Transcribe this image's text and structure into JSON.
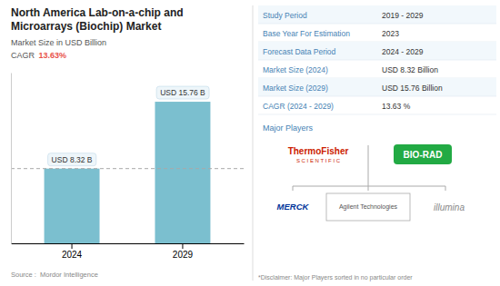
{
  "chart_data": {
    "type": "bar",
    "title": "North America Lab-on-a-chip and\nMicroarrays (Biochip) Market",
    "subtitle": "Market Size in USD Billion",
    "categories": [
      "2024",
      "2029"
    ],
    "values": [
      8.32,
      15.76
    ],
    "value_labels": [
      "USD 8.32 B",
      "USD 15.76 B"
    ],
    "data_labels": true,
    "color": "#7bbfcf",
    "ylim": [
      0,
      19
    ],
    "tick_labels": "x",
    "grid": false,
    "hline": 8.32,
    "annotations": [
      {
        "text": "CAGR "
      },
      {
        "text": "13.63%",
        "color": "#e8524a"
      },
      {
        "text": "Source :  Mordor Intelligence"
      }
    ],
    "table": {
      "rows": [
        {
          "label": "Study Period",
          "value": "2019 - 2029"
        },
        {
          "label": "Base Year For Estimation",
          "value": "2023"
        },
        {
          "label": "Forecast Data Period",
          "value": "2024 - 2029"
        },
        {
          "label": "Market Size (2024)",
          "value": "USD 8.32 Billion"
        },
        {
          "label": "Market Size (2029)",
          "value": "USD 15.76 Billion"
        },
        {
          "label": "CAGR (2024 - 2029)",
          "value": "13.63 %"
        }
      ]
    },
    "major_players": {
      "label": "Major Players",
      "players": [
        {
          "name": "ThermoFisher",
          "subtitle": "S C I E N T I F I C",
          "color": "#cc2200"
        },
        {
          "name": "BIO-RAD",
          "color": "#22aa44"
        },
        {
          "name": "Agilent Technologies"
        },
        {
          "name": "MERCK",
          "color": "#003399"
        },
        {
          "name": "illumina"
        }
      ],
      "disclaimer": "*Disclaimer: Major Players sorted in no particular order"
    }
  }
}
